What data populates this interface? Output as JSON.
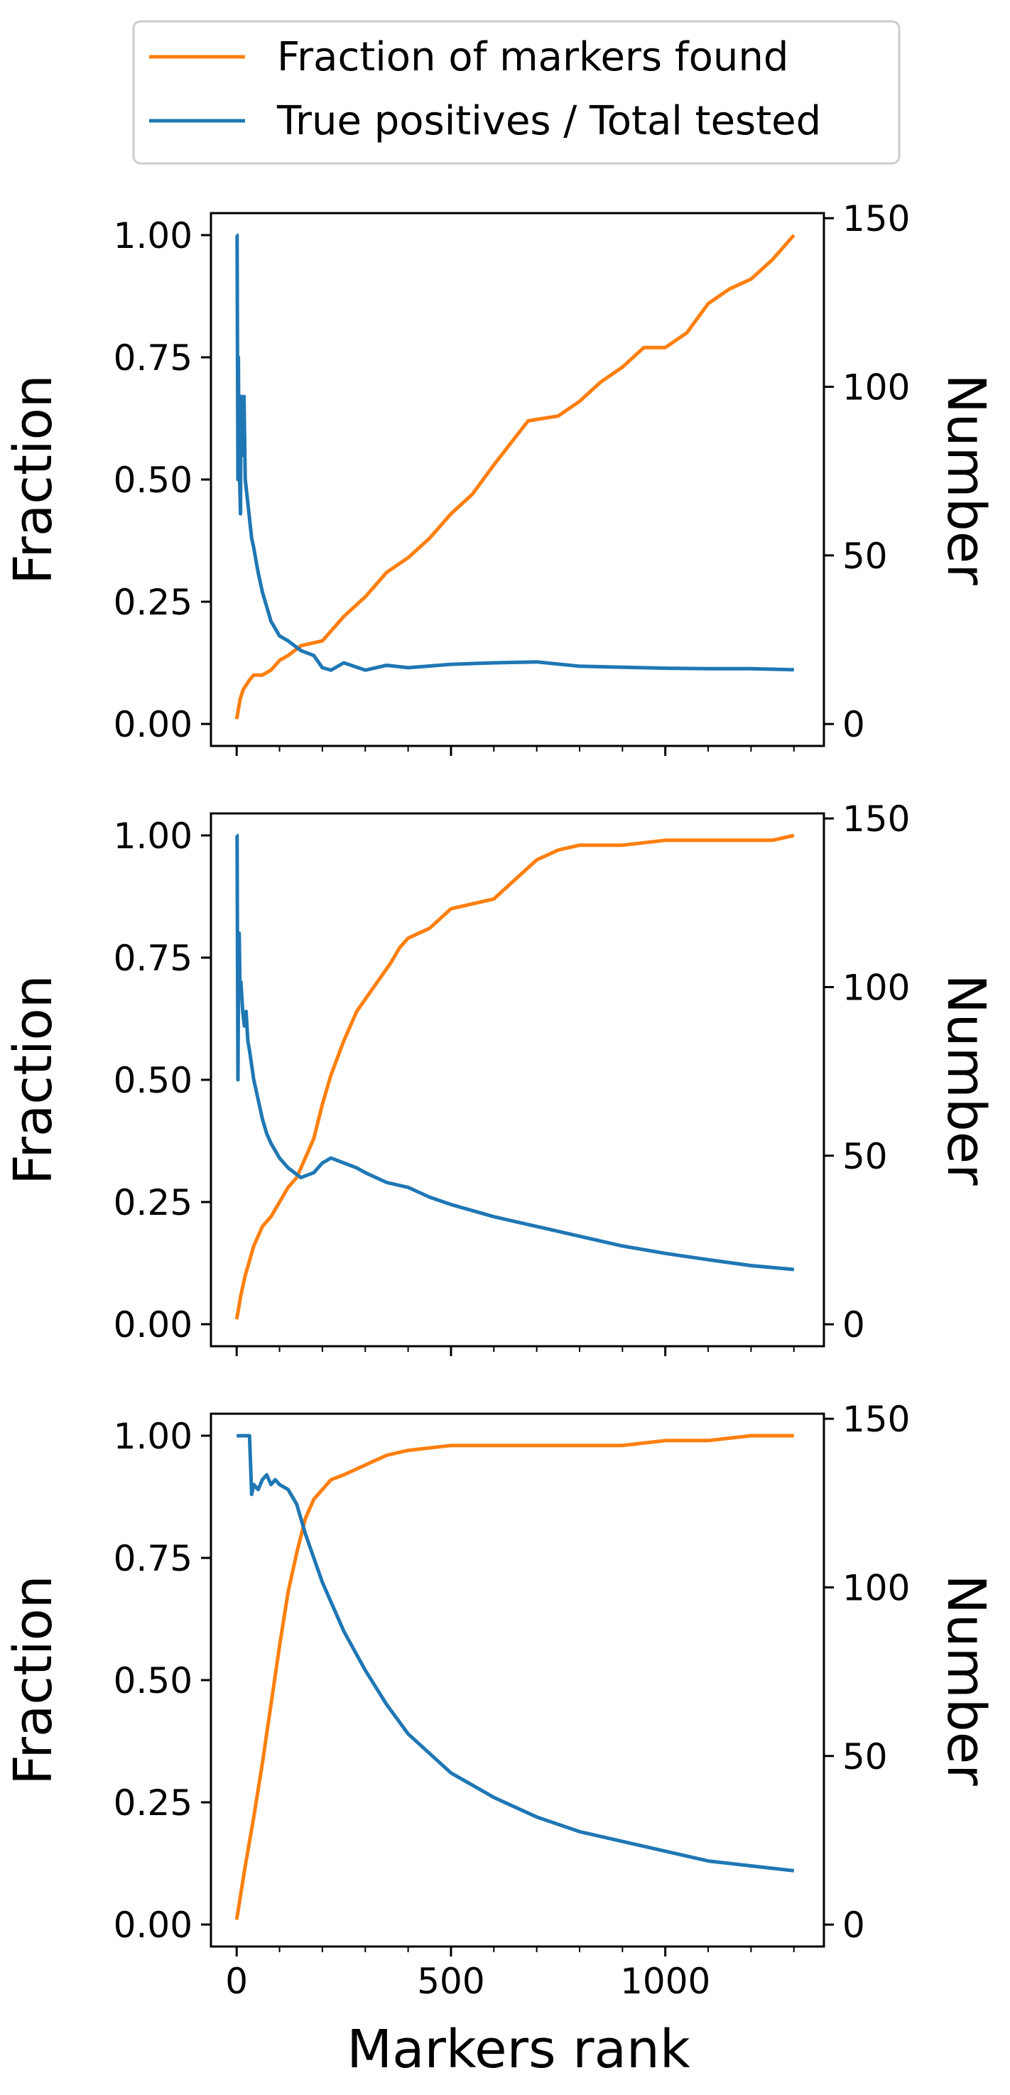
{
  "chart_data": {
    "type": "line",
    "legend": {
      "location": "top-center",
      "entries": [
        {
          "label": "Fraction of markers found",
          "color": "#ff7f0e"
        },
        {
          "label": "True positives / Total tested",
          "color": "#1f77b4"
        }
      ]
    },
    "xlabel": "Markers rank",
    "xlim": [
      -60,
      1370
    ],
    "xticks": [
      0,
      500,
      1000
    ],
    "xtick_labels": [
      "0",
      "500",
      "1000"
    ],
    "y_left": {
      "label": "Fraction",
      "ylim": [
        -0.045,
        1.045
      ],
      "ticks": [
        0,
        0.25,
        0.5,
        0.75,
        1.0
      ],
      "tick_labels": [
        "0.00",
        "0.25",
        "0.50",
        "0.75",
        "1.00"
      ]
    },
    "y_right": {
      "label": "Number",
      "ylim": [
        -6.5,
        151.5
      ],
      "ticks": [
        0,
        50,
        100,
        150
      ],
      "tick_labels": [
        "0",
        "50",
        "100",
        "150"
      ]
    },
    "panels": [
      {
        "name": "panel-1",
        "series": [
          {
            "name": "Fraction of markers found",
            "color": "#ff7f0e",
            "x": [
              0,
              8,
              15,
              30,
              40,
              60,
              80,
              100,
              120,
              150,
              200,
              250,
              300,
              350,
              400,
              450,
              500,
              550,
              600,
              680,
              750,
              800,
              850,
              900,
              950,
              1000,
              1050,
              1100,
              1150,
              1200,
              1250,
              1300
            ],
            "y": [
              0.01,
              0.05,
              0.07,
              0.09,
              0.1,
              0.1,
              0.11,
              0.13,
              0.14,
              0.16,
              0.17,
              0.22,
              0.26,
              0.31,
              0.34,
              0.38,
              0.43,
              0.47,
              0.53,
              0.62,
              0.63,
              0.66,
              0.7,
              0.73,
              0.77,
              0.77,
              0.8,
              0.86,
              0.89,
              0.91,
              0.95,
              1.0
            ]
          },
          {
            "name": "True positives / Total tested",
            "color": "#1f77b4",
            "x": [
              0,
              1,
              3,
              4,
              5,
              7,
              9,
              10,
              12,
              14,
              17,
              20,
              25,
              30,
              35,
              40,
              50,
              60,
              70,
              80,
              100,
              120,
              150,
              180,
              200,
              220,
              250,
              300,
              350,
              400,
              500,
              600,
              700,
              800,
              900,
              1000,
              1100,
              1200,
              1300
            ],
            "y": [
              1.0,
              1.0,
              0.5,
              0.75,
              0.6,
              0.5,
              0.43,
              0.67,
              0.6,
              0.55,
              0.67,
              0.5,
              0.46,
              0.42,
              0.38,
              0.36,
              0.31,
              0.27,
              0.24,
              0.21,
              0.18,
              0.17,
              0.15,
              0.14,
              0.115,
              0.11,
              0.125,
              0.11,
              0.12,
              0.115,
              0.122,
              0.125,
              0.127,
              0.118,
              0.116,
              0.114,
              0.113,
              0.113,
              0.111
            ]
          }
        ]
      },
      {
        "name": "panel-2",
        "series": [
          {
            "name": "Fraction of markers found",
            "color": "#ff7f0e",
            "x": [
              0,
              10,
              20,
              40,
              60,
              80,
              100,
              120,
              140,
              160,
              180,
              200,
              220,
              250,
              280,
              320,
              360,
              380,
              400,
              450,
              500,
              550,
              600,
              650,
              700,
              750,
              800,
              900,
              1000,
              1100,
              1200,
              1250,
              1300
            ],
            "y": [
              0.01,
              0.06,
              0.1,
              0.16,
              0.2,
              0.22,
              0.25,
              0.28,
              0.3,
              0.34,
              0.38,
              0.45,
              0.51,
              0.58,
              0.64,
              0.69,
              0.74,
              0.77,
              0.79,
              0.81,
              0.85,
              0.86,
              0.87,
              0.91,
              0.95,
              0.97,
              0.98,
              0.98,
              0.99,
              0.99,
              0.99,
              0.99,
              1.0
            ]
          },
          {
            "name": "True positives / Total tested",
            "color": "#1f77b4",
            "x": [
              0,
              1,
              3,
              4,
              6,
              8,
              10,
              14,
              18,
              22,
              26,
              30,
              35,
              40,
              50,
              60,
              70,
              80,
              100,
              120,
              150,
              180,
              200,
              220,
              250,
              280,
              300,
              350,
              400,
              450,
              500,
              600,
              700,
              800,
              900,
              1000,
              1100,
              1200,
              1300
            ],
            "y": [
              1.0,
              1.0,
              0.5,
              0.67,
              0.8,
              0.67,
              0.7,
              0.64,
              0.61,
              0.64,
              0.58,
              0.56,
              0.53,
              0.5,
              0.46,
              0.42,
              0.39,
              0.37,
              0.34,
              0.32,
              0.3,
              0.31,
              0.33,
              0.34,
              0.33,
              0.32,
              0.31,
              0.29,
              0.28,
              0.26,
              0.245,
              0.22,
              0.2,
              0.18,
              0.16,
              0.145,
              0.132,
              0.12,
              0.112
            ]
          }
        ]
      },
      {
        "name": "panel-3",
        "series": [
          {
            "name": "Fraction of markers found",
            "color": "#ff7f0e",
            "x": [
              0,
              20,
              40,
              60,
              80,
              100,
              120,
              140,
              160,
              180,
              200,
              220,
              250,
              300,
              350,
              400,
              500,
              600,
              700,
              800,
              900,
              1000,
              1100,
              1200,
              1300
            ],
            "y": [
              0.01,
              0.12,
              0.22,
              0.33,
              0.45,
              0.57,
              0.68,
              0.76,
              0.83,
              0.87,
              0.89,
              0.91,
              0.92,
              0.94,
              0.96,
              0.97,
              0.98,
              0.98,
              0.98,
              0.98,
              0.98,
              0.99,
              0.99,
              1.0,
              1.0
            ]
          },
          {
            "name": "True positives / Total tested",
            "color": "#1f77b4",
            "x": [
              0,
              10,
              20,
              30,
              35,
              40,
              50,
              60,
              70,
              80,
              90,
              100,
              120,
              140,
              160,
              180,
              200,
              250,
              300,
              350,
              400,
              500,
              600,
              700,
              800,
              900,
              1000,
              1100,
              1200,
              1300
            ],
            "y": [
              1.0,
              1.0,
              1.0,
              1.0,
              0.88,
              0.9,
              0.89,
              0.91,
              0.92,
              0.9,
              0.91,
              0.9,
              0.89,
              0.86,
              0.8,
              0.75,
              0.7,
              0.6,
              0.52,
              0.45,
              0.39,
              0.31,
              0.26,
              0.22,
              0.19,
              0.17,
              0.15,
              0.13,
              0.12,
              0.11
            ]
          }
        ]
      }
    ]
  }
}
